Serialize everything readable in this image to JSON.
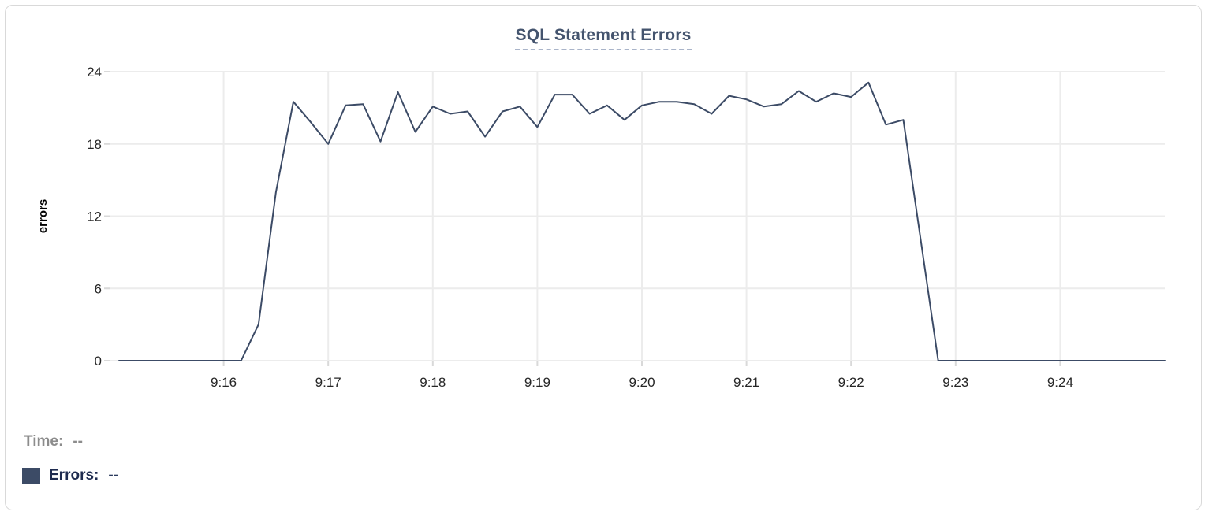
{
  "chart_data": {
    "type": "line",
    "title": "SQL Statement Errors",
    "xlabel": "",
    "ylabel": "errors",
    "ylim": [
      0,
      24
    ],
    "y_ticks": [
      0,
      6,
      12,
      18,
      24
    ],
    "x_ticks": [
      "9:16",
      "9:17",
      "9:18",
      "9:19",
      "9:20",
      "9:21",
      "9:22",
      "9:23",
      "9:24"
    ],
    "x_start": "9:15:00",
    "x_end": "9:25:00",
    "interval_seconds": 10,
    "grid": true,
    "legend_position": "bottom-left",
    "series": [
      {
        "name": "Errors",
        "color": "#3c4b66",
        "values": [
          0,
          0,
          0,
          0,
          0,
          0,
          0,
          0,
          3,
          14,
          21.5,
          19.8,
          18,
          21.2,
          21.3,
          18.2,
          22.3,
          19,
          21.1,
          20.5,
          20.7,
          18.6,
          20.7,
          21.1,
          19.4,
          22.1,
          22.1,
          20.5,
          21.2,
          20,
          21.2,
          21.5,
          21.5,
          21.3,
          20.5,
          22,
          21.7,
          21.1,
          21.3,
          22.4,
          21.5,
          22.2,
          21.9,
          23.1,
          19.6,
          20,
          10,
          0,
          0,
          0,
          0,
          0,
          0,
          0,
          0,
          0,
          0,
          0,
          0,
          0,
          0
        ]
      }
    ]
  },
  "colors": {
    "line": "#3c4b66",
    "grid_line": "#ececec",
    "tick_line": "#d9d9d9",
    "axis_text": "#262626",
    "title_text": "#44546e",
    "title_underline": "#a9b4c9",
    "time_text": "#8c8c8c",
    "errors_text": "#1e2b4f"
  },
  "tooltip_readout": {
    "time_label": "Time:",
    "time_value": "--",
    "errors_label": "Errors:",
    "errors_value": "--"
  }
}
